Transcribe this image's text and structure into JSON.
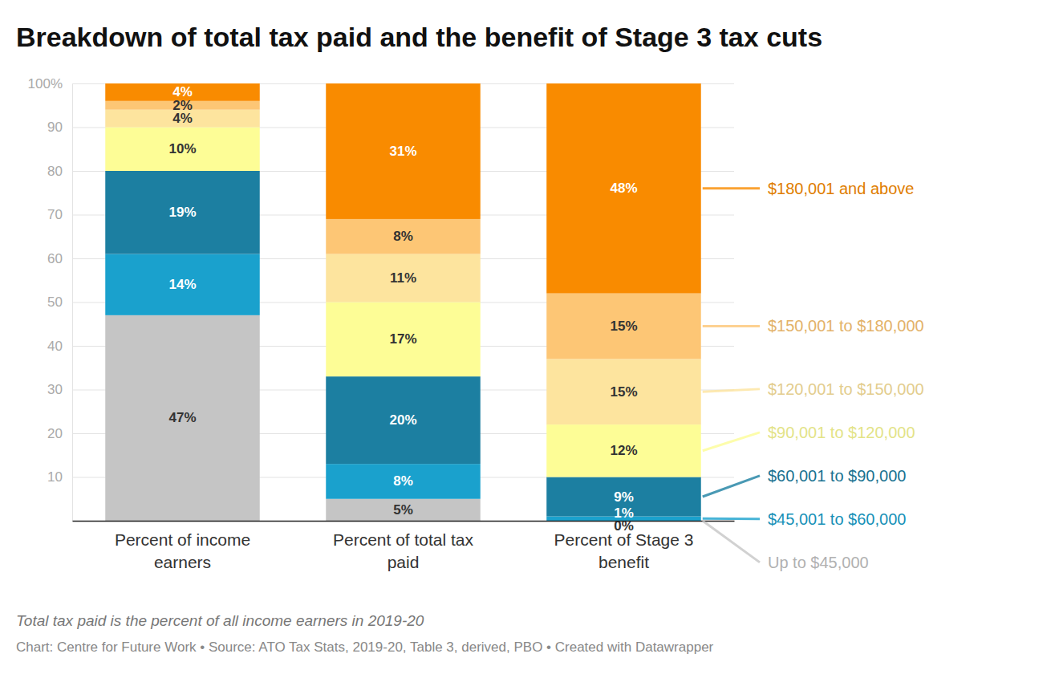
{
  "chart_data": {
    "type": "bar",
    "title": "Breakdown of total tax paid and the benefit of Stage 3 tax cuts",
    "caption": "Total tax paid is the percent of all income earners in 2019-20",
    "source": "Chart: Centre for Future Work • Source: ATO Tax Stats, 2019-20, Table 3, derived, PBO • Created with Datawrapper",
    "stacked": true,
    "data_labels": true,
    "grid": true,
    "legend": "right",
    "categories": [
      "Percent of income earners",
      "Percent of total tax paid",
      "Percent of Stage 3 benefit"
    ],
    "series": [
      {
        "name": "Up to $45,000",
        "color": "#c5c5c5",
        "values": [
          47,
          5,
          0
        ],
        "value_labels": [
          "47%",
          "5%",
          "0%"
        ]
      },
      {
        "name": "$45,001 to $60,000",
        "color": "#1aa1cd",
        "values": [
          14,
          8,
          1
        ],
        "value_labels": [
          "14%",
          "8%",
          "1%"
        ]
      },
      {
        "name": "$60,001 to $90,000",
        "color": "#1c7fa1",
        "values": [
          19,
          20,
          9
        ],
        "value_labels": [
          "19%",
          "20%",
          "9%"
        ]
      },
      {
        "name": "$90,001 to $120,000",
        "color": "#fdfd96",
        "values": [
          10,
          17,
          12
        ],
        "value_labels": [
          "10%",
          "17%",
          "12%"
        ]
      },
      {
        "name": "$120,001 to $150,000",
        "color": "#fde49e",
        "values": [
          4,
          11,
          15
        ],
        "value_labels": [
          "4%",
          "11%",
          "15%"
        ]
      },
      {
        "name": "$150,001 to $180,000",
        "color": "#fdc675",
        "values": [
          2,
          8,
          15
        ],
        "value_labels": [
          "2%",
          "8%",
          "15%"
        ]
      },
      {
        "name": "$180,001 and above",
        "color": "#f98b00",
        "values": [
          4,
          31,
          48
        ],
        "value_labels": [
          "4%",
          "31%",
          "48%"
        ]
      }
    ],
    "ylim": [
      0,
      100
    ],
    "yticks": [
      10,
      20,
      30,
      40,
      50,
      60,
      70,
      80,
      90,
      {
        "value": 100,
        "label": "100%"
      }
    ]
  }
}
